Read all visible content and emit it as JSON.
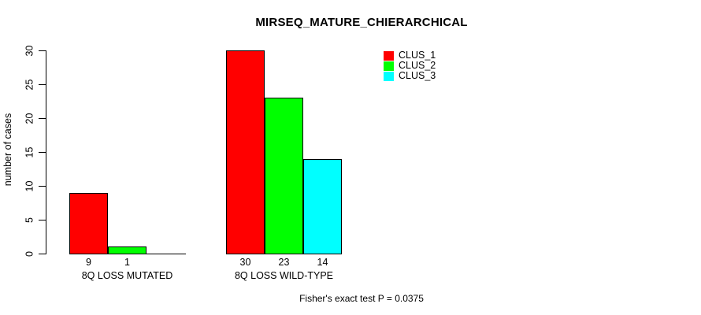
{
  "chart_data": {
    "type": "bar",
    "title": "MIRSEQ_MATURE_CHIERARCHICAL",
    "ylabel": "number of cases",
    "xlabel": "",
    "ylim": [
      0,
      30
    ],
    "yticks": [
      0,
      5,
      10,
      15,
      20,
      25,
      30
    ],
    "grid": false,
    "legend_position": "topright",
    "series": [
      {
        "name": "CLUS_1",
        "color": "#FF0000"
      },
      {
        "name": "CLUS_2",
        "color": "#00FF00"
      },
      {
        "name": "CLUS_3",
        "color": "#00FFFF"
      }
    ],
    "groups": [
      {
        "label": "8Q LOSS MUTATED",
        "values": [
          9,
          1,
          0
        ],
        "bar_labels": [
          "9",
          "1",
          ""
        ]
      },
      {
        "label": "8Q LOSS WILD-TYPE",
        "values": [
          30,
          23,
          14
        ],
        "bar_labels": [
          "30",
          "23",
          "14"
        ]
      }
    ],
    "bar_border_color": "#000000",
    "footer": "Fisher's exact test P = 0.0375"
  }
}
